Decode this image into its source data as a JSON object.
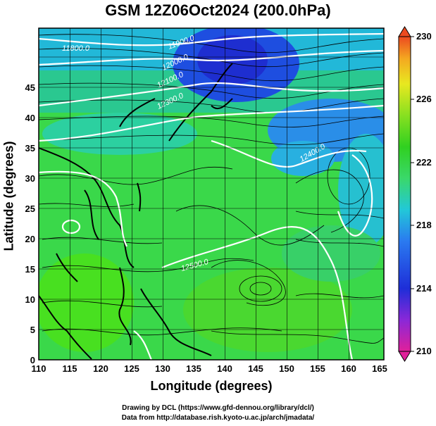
{
  "title": "GSM 12Z06Oct2024 (200.0hPa)",
  "x_axis": {
    "label": "Longitude (degrees)",
    "ticks": [
      "110",
      "115",
      "120",
      "125",
      "130",
      "135",
      "140",
      "145",
      "150",
      "155",
      "160",
      "165"
    ]
  },
  "y_axis": {
    "label": "Latitude (degrees)",
    "ticks": [
      "0",
      "5",
      "10",
      "15",
      "20",
      "25",
      "30",
      "35",
      "40",
      "45"
    ]
  },
  "colorbar": {
    "ticks": [
      "210",
      "214",
      "218",
      "222",
      "226",
      "230"
    ],
    "colors": [
      "#e0209a",
      "#8a28d8",
      "#1e2ed8",
      "#2a7af0",
      "#22c8d8",
      "#3ad86a",
      "#30d020",
      "#88e020",
      "#e8e820",
      "#f4a820",
      "#ec4a20"
    ]
  },
  "contour_labels": [
    {
      "text": "11800.0"
    },
    {
      "text": "11900.0"
    },
    {
      "text": "12000.0"
    },
    {
      "text": "12100.0"
    },
    {
      "text": "12300.0"
    },
    {
      "text": "12400.0"
    },
    {
      "text": "12500.0"
    }
  ],
  "credits": {
    "line1": "Drawing by DCL (https://www.gfd-dennou.org/library/dcl/)",
    "line2": "Data from http://database.rish.kyoto-u.ac.jp/arch/jmadata/"
  }
}
